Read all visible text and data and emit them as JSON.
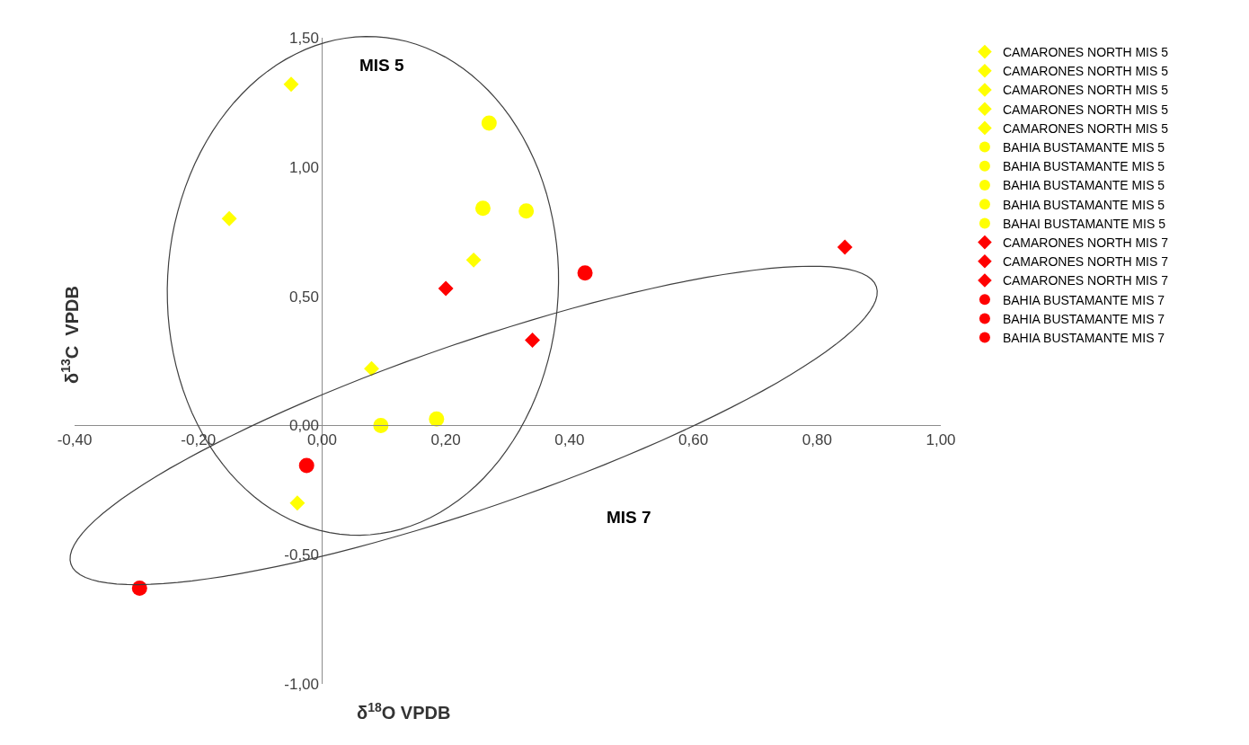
{
  "chart_data": {
    "type": "scatter",
    "xlabel": "δ$^{18}$O VPDB",
    "ylabel": "δ$^{13}$C  VPDB",
    "xlim": [
      -0.4,
      1.0
    ],
    "ylim": [
      -1.0,
      1.5
    ],
    "xticks": [
      {
        "value": -0.4,
        "label": "-0,40"
      },
      {
        "value": -0.2,
        "label": "-0,20"
      },
      {
        "value": 0,
        "label": "0,00"
      },
      {
        "value": 0.2,
        "label": "0,20"
      },
      {
        "value": 0.4,
        "label": "0,40"
      },
      {
        "value": 0.6,
        "label": "0,60"
      },
      {
        "value": 0.8,
        "label": "0,80"
      },
      {
        "value": 1.0,
        "label": "1,00"
      }
    ],
    "yticks": [
      {
        "value": -1.0,
        "label": "-1,00"
      },
      {
        "value": -0.5,
        "label": "-0,50"
      },
      {
        "value": 0,
        "label": "0,00"
      },
      {
        "value": 0.5,
        "label": "0,50"
      },
      {
        "value": 1.0,
        "label": "1,00"
      },
      {
        "value": 1.5,
        "label": "1,50"
      }
    ],
    "legend": "right",
    "annotations": [
      "MIS 5",
      "MIS 7"
    ],
    "series": [
      {
        "name": "CAMARONES NORTH MIS 5",
        "color": "#ffff00",
        "marker": "diamond",
        "x": [
          -0.05
        ],
        "values": [
          1.32
        ]
      },
      {
        "name": "CAMARONES NORTH MIS 5",
        "color": "#ffff00",
        "marker": "diamond",
        "x": [
          -0.15
        ],
        "values": [
          0.8
        ]
      },
      {
        "name": "CAMARONES NORTH MIS 5",
        "color": "#ffff00",
        "marker": "diamond",
        "x": [
          0.245
        ],
        "values": [
          0.64
        ]
      },
      {
        "name": "CAMARONES NORTH MIS 5",
        "color": "#ffff00",
        "marker": "diamond",
        "x": [
          0.08
        ],
        "values": [
          0.22
        ]
      },
      {
        "name": "CAMARONES NORTH MIS 5",
        "color": "#ffff00",
        "marker": "diamond",
        "x": [
          -0.04
        ],
        "values": [
          -0.3
        ]
      },
      {
        "name": "BAHIA BUSTAMANTE MIS 5",
        "color": "#ffff00",
        "marker": "circle",
        "x": [
          0.27
        ],
        "values": [
          1.17
        ]
      },
      {
        "name": "BAHIA BUSTAMANTE MIS 5",
        "color": "#ffff00",
        "marker": "circle",
        "x": [
          0.26
        ],
        "values": [
          0.84
        ]
      },
      {
        "name": "BAHIA BUSTAMANTE MIS 5",
        "color": "#ffff00",
        "marker": "circle",
        "x": [
          0.33
        ],
        "values": [
          0.83
        ]
      },
      {
        "name": "BAHIA BUSTAMANTE MIS 5",
        "color": "#ffff00",
        "marker": "circle",
        "x": [
          0.185
        ],
        "values": [
          0.025
        ]
      },
      {
        "name": "BAHAI BUSTAMANTE MIS 5",
        "color": "#ffff00",
        "marker": "circle",
        "x": [
          0.095
        ],
        "values": [
          0.0
        ]
      },
      {
        "name": "CAMARONES NORTH MIS 7",
        "color": "#ff0000",
        "marker": "diamond",
        "x": [
          0.2
        ],
        "values": [
          0.53
        ]
      },
      {
        "name": "CAMARONES NORTH MIS 7",
        "color": "#ff0000",
        "marker": "diamond",
        "x": [
          0.34
        ],
        "values": [
          0.33
        ]
      },
      {
        "name": "CAMARONES NORTH MIS 7",
        "color": "#ff0000",
        "marker": "diamond",
        "x": [
          0.845
        ],
        "values": [
          0.69
        ]
      },
      {
        "name": "BAHIA BUSTAMANTE MIS 7",
        "color": "#ff0000",
        "marker": "circle",
        "x": [
          0.425
        ],
        "values": [
          0.59
        ]
      },
      {
        "name": "BAHIA BUSTAMANTE MIS 7",
        "color": "#ff0000",
        "marker": "circle",
        "x": [
          -0.025
        ],
        "values": [
          -0.155
        ]
      },
      {
        "name": "BAHIA BUSTAMANTE MIS 7",
        "color": "#ff0000",
        "marker": "circle",
        "x": [
          -0.295
        ],
        "values": [
          -0.63
        ]
      }
    ]
  }
}
